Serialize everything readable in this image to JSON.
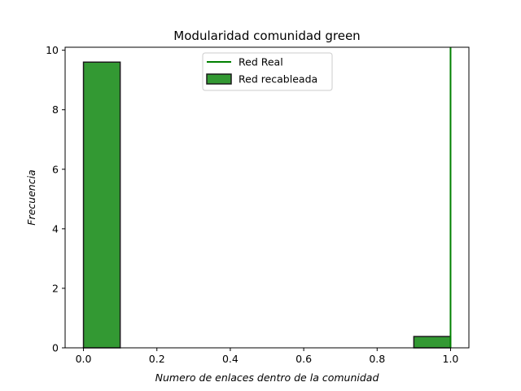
{
  "chart_data": {
    "type": "bar",
    "title": "Modularidad  comunidad green",
    "xlabel": "Numero de enlaces dentro de la comunidad",
    "ylabel": "Frecuencia",
    "xlim": [
      -0.05,
      1.05
    ],
    "ylim": [
      0,
      10.1
    ],
    "xticks": [
      "0.0",
      "0.2",
      "0.4",
      "0.6",
      "0.8",
      "1.0"
    ],
    "yticks": [
      "0",
      "2",
      "4",
      "6",
      "8",
      "10"
    ],
    "xtick_values": [
      0,
      0.2,
      0.4,
      0.6,
      0.8,
      1.0
    ],
    "ytick_values": [
      0,
      2,
      4,
      6,
      8,
      10
    ],
    "bins": [
      0.0,
      0.1,
      0.2,
      0.3,
      0.4,
      0.5,
      0.6,
      0.7,
      0.8,
      0.9,
      1.0
    ],
    "counts": [
      9.6,
      0,
      0,
      0,
      0,
      0,
      0,
      0,
      0,
      0.38
    ],
    "reference_line": {
      "name": "Red Real",
      "x": 1.0,
      "color": "#008000"
    },
    "histogram": {
      "name": "Red recableada",
      "color": "#339933",
      "edge_color": "#1a1a1a"
    },
    "legend": {
      "placement": "top-center",
      "entries": [
        {
          "label": "Red Real",
          "kind": "line"
        },
        {
          "label": "Red recableada",
          "kind": "patch"
        }
      ]
    },
    "grid": false
  }
}
